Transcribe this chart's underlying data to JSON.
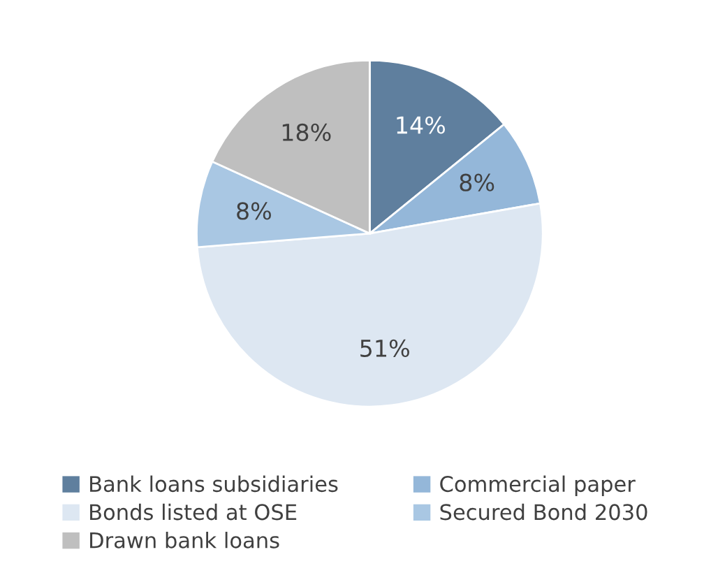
{
  "chart_data": {
    "type": "pie",
    "categories": [
      "Bank loans subsidiaries",
      "Commercial paper",
      "Bonds listed at OSE",
      "Secured Bond 2030",
      "Drawn bank loans"
    ],
    "values": [
      14,
      8,
      51,
      8,
      18
    ],
    "colors": [
      "#5f7f9e",
      "#94b7d9",
      "#dde7f2",
      "#a9c7e3",
      "#bfbfbf"
    ],
    "value_labels": [
      "14%",
      "8%",
      "51%",
      "8%",
      "18%"
    ],
    "legend": "bottom"
  }
}
